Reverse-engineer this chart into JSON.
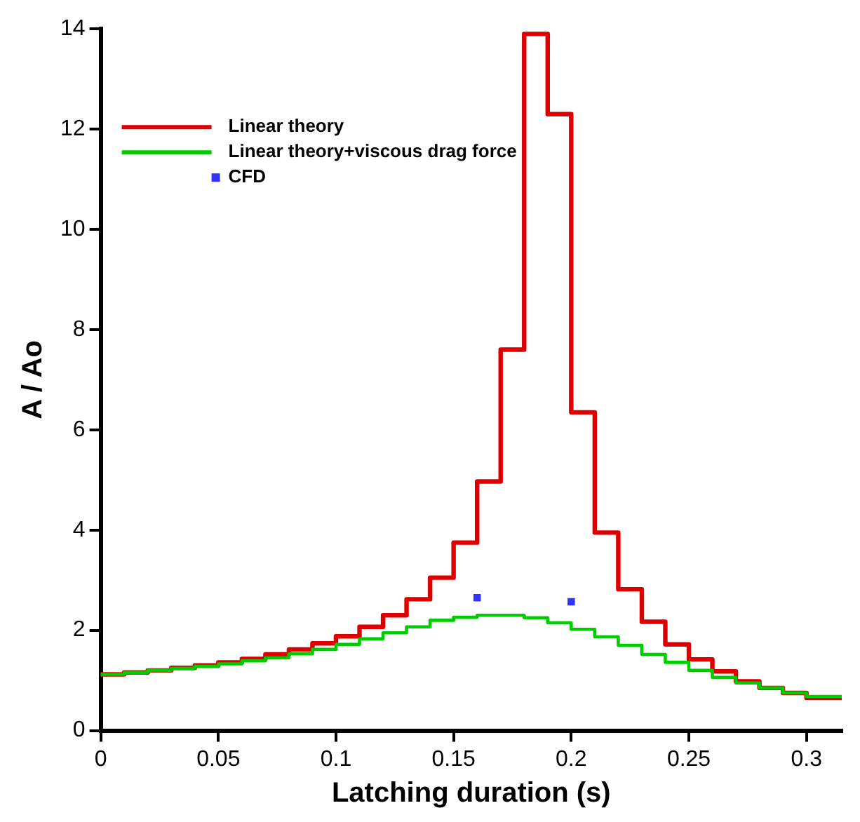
{
  "chart_data": {
    "type": "step",
    "xlabel": "Latching duration (s)",
    "ylabel": "A / Ao",
    "xlim": [
      0,
      0.315
    ],
    "xticks": [
      0,
      0.05,
      0.1,
      0.15,
      0.2,
      0.25,
      0.3
    ],
    "ylim": [
      0,
      14
    ],
    "yticks": [
      0,
      2,
      4,
      6,
      8,
      10,
      12,
      14
    ],
    "grid": false,
    "legend": "top left",
    "series": [
      {
        "name": "Linear theory",
        "color": "#dd0000",
        "x": [
          0,
          0.01,
          0.02,
          0.03,
          0.04,
          0.05,
          0.06,
          0.07,
          0.08,
          0.09,
          0.1,
          0.11,
          0.12,
          0.13,
          0.14,
          0.15,
          0.16,
          0.17,
          0.18,
          0.19,
          0.2,
          0.21,
          0.22,
          0.23,
          0.24,
          0.25,
          0.26,
          0.27,
          0.28,
          0.29,
          0.3,
          0.31,
          0.315
        ],
        "values": [
          1.08,
          1.12,
          1.16,
          1.2,
          1.25,
          1.3,
          1.36,
          1.43,
          1.52,
          1.62,
          1.74,
          1.88,
          2.07,
          2.3,
          2.62,
          3.05,
          3.75,
          4.97,
          7.6,
          13.9,
          12.3,
          6.35,
          3.95,
          2.82,
          2.17,
          1.72,
          1.42,
          1.18,
          0.98,
          0.85,
          0.75,
          0.65,
          0.65
        ]
      },
      {
        "name": "Linear theory+viscous drag force",
        "color": "#00cc00",
        "x": [
          0,
          0.01,
          0.02,
          0.03,
          0.04,
          0.05,
          0.06,
          0.07,
          0.08,
          0.09,
          0.1,
          0.11,
          0.12,
          0.13,
          0.14,
          0.15,
          0.16,
          0.17,
          0.18,
          0.19,
          0.2,
          0.21,
          0.22,
          0.23,
          0.24,
          0.25,
          0.26,
          0.27,
          0.28,
          0.29,
          0.3,
          0.31,
          0.315
        ],
        "values": [
          1.08,
          1.12,
          1.16,
          1.2,
          1.24,
          1.28,
          1.33,
          1.39,
          1.45,
          1.53,
          1.62,
          1.72,
          1.83,
          1.95,
          2.07,
          2.2,
          2.26,
          2.3,
          2.3,
          2.25,
          2.15,
          2.02,
          1.87,
          1.7,
          1.52,
          1.36,
          1.2,
          1.06,
          0.95,
          0.85,
          0.75,
          0.68,
          0.68
        ]
      },
      {
        "name": "CFD",
        "color": "#3333ff",
        "type": "scatter",
        "marker": "square",
        "x": [
          0.16,
          0.2
        ],
        "values": [
          2.65,
          2.57
        ]
      }
    ]
  }
}
